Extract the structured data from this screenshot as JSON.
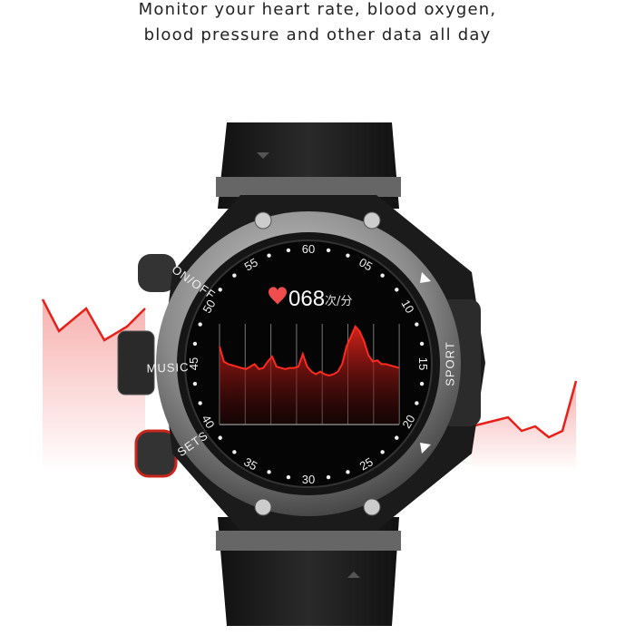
{
  "headline": {
    "line1": "Monitor your heart rate, blood oxygen,",
    "line2": "blood pressure and other data all day"
  },
  "watch": {
    "bezel_numbers": [
      "60",
      "05",
      "10",
      "15",
      "20",
      "25",
      "30",
      "35",
      "40",
      "45",
      "50",
      "55"
    ],
    "side_labels": {
      "sets": "SETS",
      "music": "MUSIC",
      "onoff": "ON/OFF",
      "sport": "SPORT"
    },
    "screen": {
      "heart_rate": "068",
      "unit": "次/分",
      "heart_icon": "heart-icon",
      "trace": [
        62,
        50,
        48,
        47,
        46,
        45,
        44,
        46,
        48,
        44,
        45,
        50,
        54,
        46,
        45,
        44,
        45,
        45,
        46,
        56,
        46,
        42,
        40,
        42,
        40,
        39,
        40,
        42,
        48,
        62,
        70,
        78,
        74,
        66,
        55,
        50,
        51,
        48,
        48,
        47,
        46,
        45
      ],
      "accent_color": "#e8322b"
    }
  },
  "colors": {
    "heartbeat_line": "#e8201a",
    "strap": "#1c1c1c",
    "bezel": "#9a9a9a"
  }
}
